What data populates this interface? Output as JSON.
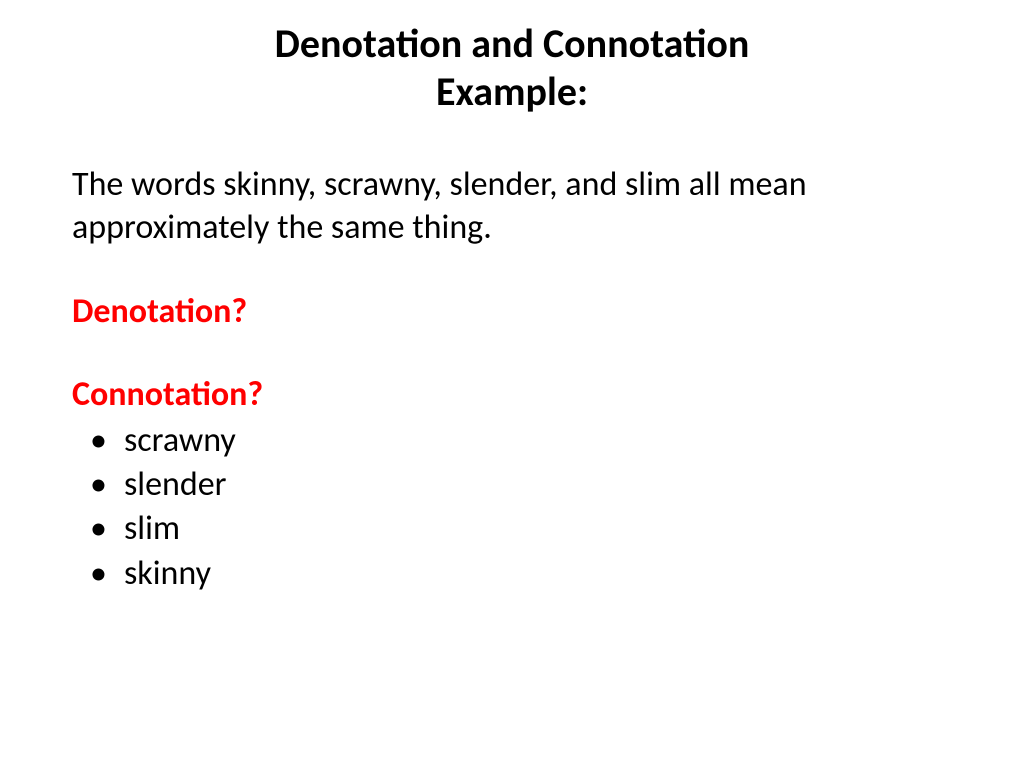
{
  "title_line1": "Denotation and Connotation",
  "title_line2": "Example:",
  "intro_text": "The words skinny, scrawny, slender, and slim all mean approximately the same thing.",
  "question1": "Denotation?",
  "question2": "Connotation?",
  "bullets": {
    "0": "scrawny",
    "1": "slender",
    "2": "slim",
    "3": "skinny"
  },
  "colors": {
    "text": "#000000",
    "highlight": "#ff0000",
    "background": "#ffffff"
  },
  "typography": {
    "title_fontsize": 40,
    "body_fontsize": 34,
    "title_weight": "bold",
    "question_weight": "bold",
    "font_family": "Calibri"
  }
}
